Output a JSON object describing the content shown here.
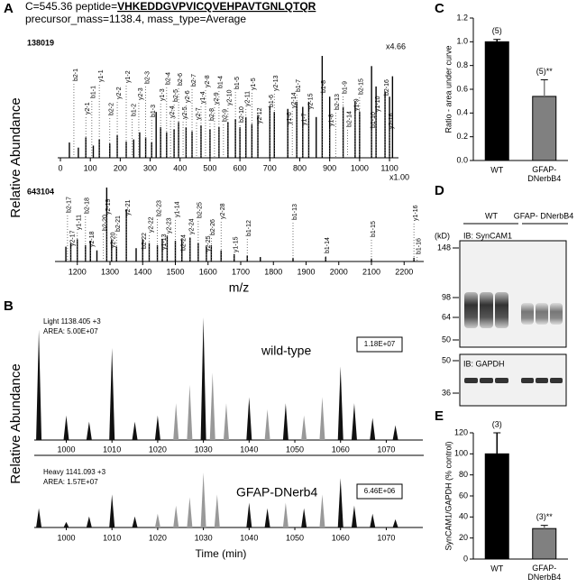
{
  "panel_labels": [
    "A",
    "B",
    "C",
    "D",
    "E"
  ],
  "header": {
    "prefix": "C=545.36 peptide=",
    "peptide": "VHKEDDGVPVICQVEHPAVTGNLQTQR",
    "line2": "precursor_mass=1138.4, mass_type=Average"
  },
  "blot": {
    "unit": "(kD)",
    "groups": [
      "WT",
      "GFAP- DNerbB4"
    ],
    "top_label": "IB: SynCAM1",
    "top_markers": [
      148,
      98,
      64,
      50
    ],
    "bottom_label": "IB: GAPDH",
    "bottom_markers": [
      50,
      36
    ]
  },
  "chart_data": [
    {
      "type": "spectrum",
      "id_label": "138019",
      "zoom_label": "x4.66",
      "zoom_label2": "x1.00",
      "ylabel": "Relative Abundance",
      "xlim": [
        0,
        1130
      ],
      "xticks": [
        0,
        100,
        200,
        300,
        400,
        500,
        600,
        700,
        800,
        900,
        1000,
        1100
      ],
      "ylim": [
        0,
        100
      ],
      "color": "#000000",
      "x": [
        30,
        60,
        85,
        110,
        130,
        165,
        190,
        220,
        245,
        265,
        285,
        305,
        320,
        335,
        355,
        380,
        395,
        420,
        440,
        470,
        500,
        530,
        560,
        585,
        600,
        620,
        640,
        660,
        700,
        715,
        760,
        790,
        810,
        830,
        855,
        875,
        900,
        945,
        985,
        1000,
        1040,
        1055,
        1085,
        1100,
        1110
      ],
      "values": [
        15,
        10,
        20,
        12,
        18,
        14,
        22,
        16,
        18,
        25,
        20,
        15,
        45,
        30,
        25,
        28,
        35,
        30,
        26,
        32,
        28,
        30,
        35,
        38,
        30,
        40,
        33,
        42,
        50,
        45,
        48,
        55,
        50,
        55,
        40,
        100,
        60,
        50,
        55,
        45,
        90,
        70,
        65,
        60,
        80
      ],
      "annotations": [
        {
          "label": "b2-1",
          "x": 45
        },
        {
          "label": "y2-1",
          "x": 85
        },
        {
          "label": "b1-1",
          "x": 105
        },
        {
          "label": "y1-1",
          "x": 130
        },
        {
          "label": "b2-2",
          "x": 165
        },
        {
          "label": "y2-2",
          "x": 190
        },
        {
          "label": "y1-2",
          "x": 220
        },
        {
          "label": "b1-2",
          "x": 240
        },
        {
          "label": "y2-3",
          "x": 262
        },
        {
          "label": "b2-3",
          "x": 285
        },
        {
          "label": "b1-3",
          "x": 305
        },
        {
          "label": "y1-3",
          "x": 335
        },
        {
          "label": "b2-4",
          "x": 355
        },
        {
          "label": "y2-4",
          "x": 368
        },
        {
          "label": "b2-5",
          "x": 380
        },
        {
          "label": "b2-6",
          "x": 395
        },
        {
          "label": "y2-5",
          "x": 410
        },
        {
          "label": "y2-6",
          "x": 420
        },
        {
          "label": "b2-7",
          "x": 440
        },
        {
          "label": "y2-7",
          "x": 455
        },
        {
          "label": "y1-4",
          "x": 470
        },
        {
          "label": "y2-8",
          "x": 485
        },
        {
          "label": "b2-8",
          "x": 500
        },
        {
          "label": "y2-9",
          "x": 515
        },
        {
          "label": "b1-4",
          "x": 530
        },
        {
          "label": "b2-9",
          "x": 545
        },
        {
          "label": "y2-10",
          "x": 560
        },
        {
          "label": "b1-5",
          "x": 585
        },
        {
          "label": "b2-10",
          "x": 600
        },
        {
          "label": "y2-11",
          "x": 620
        },
        {
          "label": "y1-5",
          "x": 640
        },
        {
          "label": "y2-12",
          "x": 660
        },
        {
          "label": "b1-6",
          "x": 700
        },
        {
          "label": "y2-13",
          "x": 715
        },
        {
          "label": "y1-6",
          "x": 760
        },
        {
          "label": "y2-14",
          "x": 775
        },
        {
          "label": "b1-7",
          "x": 790
        },
        {
          "label": "y1-7",
          "x": 810
        },
        {
          "label": "y2-15",
          "x": 830
        },
        {
          "label": "b1-8",
          "x": 875
        },
        {
          "label": "y1-8",
          "x": 900
        },
        {
          "label": "b2-13",
          "x": 920
        },
        {
          "label": "b1-9",
          "x": 945
        },
        {
          "label": "b2-14",
          "x": 960
        },
        {
          "label": "y1-9",
          "x": 985
        },
        {
          "label": "b2-15",
          "x": 1000
        },
        {
          "label": "b1-10",
          "x": 1040
        },
        {
          "label": "y1-10",
          "x": 1055
        },
        {
          "label": "b2-16",
          "x": 1085
        },
        {
          "label": "y2-16",
          "x": 1100
        }
      ]
    },
    {
      "type": "spectrum",
      "id_label": "643104",
      "xlabel": "m/z",
      "xlim": [
        1140,
        2260
      ],
      "xticks": [
        1200,
        1300,
        1400,
        1500,
        1600,
        1700,
        1800,
        1900,
        2000,
        2100,
        2200
      ],
      "ylim": [
        0,
        100
      ],
      "color": "#000000",
      "x": [
        1165,
        1180,
        1200,
        1225,
        1240,
        1260,
        1290,
        1305,
        1320,
        1350,
        1380,
        1400,
        1420,
        1445,
        1460,
        1475,
        1500,
        1520,
        1545,
        1570,
        1595,
        1610,
        1640,
        1680,
        1720,
        1760,
        1860,
        1960,
        2100,
        2230
      ],
      "values": [
        20,
        25,
        30,
        22,
        28,
        15,
        100,
        30,
        20,
        70,
        18,
        30,
        25,
        22,
        30,
        35,
        28,
        30,
        32,
        25,
        20,
        22,
        15,
        10,
        8,
        6,
        5,
        6,
        4,
        5
      ],
      "annotations": [
        {
          "label": "b2-17",
          "x": 1170
        },
        {
          "label": "y2-17",
          "x": 1180
        },
        {
          "label": "y1-11",
          "x": 1200
        },
        {
          "label": "b2-18",
          "x": 1225
        },
        {
          "label": "y2-18",
          "x": 1240
        },
        {
          "label": "b2-20",
          "x": 1280
        },
        {
          "label": "y2-19",
          "x": 1290
        },
        {
          "label": "y2-20",
          "x": 1305
        },
        {
          "label": "b2-21",
          "x": 1320
        },
        {
          "label": "y2-21",
          "x": 1350
        },
        {
          "label": "b2-22",
          "x": 1400
        },
        {
          "label": "y2-22",
          "x": 1420
        },
        {
          "label": "b2-23",
          "x": 1445
        },
        {
          "label": "y1-13",
          "x": 1460
        },
        {
          "label": "y2-23",
          "x": 1475
        },
        {
          "label": "y1-14",
          "x": 1500
        },
        {
          "label": "b2-24",
          "x": 1520
        },
        {
          "label": "y2-24",
          "x": 1545
        },
        {
          "label": "b2-25",
          "x": 1570
        },
        {
          "label": "y2-25",
          "x": 1595
        },
        {
          "label": "b2-26",
          "x": 1610
        },
        {
          "label": "y2-28",
          "x": 1640
        },
        {
          "label": "y1-15",
          "x": 1680
        },
        {
          "label": "b1-12",
          "x": 1720
        },
        {
          "label": "b1-13",
          "x": 1860
        },
        {
          "label": "b1-14",
          "x": 1960
        },
        {
          "label": "b1-15",
          "x": 2100
        },
        {
          "label": "y1-16",
          "x": 2230
        },
        {
          "label": "b1-16",
          "x": 2240
        }
      ]
    },
    {
      "type": "chromatogram",
      "ylabel": "Relative Abundance",
      "precursor": "Light 1138.405 +3",
      "area": "AREA: 5.00E+07",
      "trace_name": "wild-type",
      "boxed_value": "1.18E+07",
      "xlim": [
        993,
        1078
      ],
      "xticks": [
        1000,
        1010,
        1020,
        1030,
        1040,
        1050,
        1060,
        1070
      ],
      "ylim": [
        0,
        100
      ],
      "series": [
        {
          "color": "#111111",
          "x": [
            994,
            1000,
            1005,
            1010,
            1015,
            1020,
            1030,
            1040,
            1048,
            1060,
            1063,
            1067,
            1072
          ],
          "values": [
            90,
            20,
            15,
            75,
            15,
            20,
            100,
            35,
            30,
            60,
            30,
            18,
            12
          ]
        },
        {
          "color": "#999999",
          "x": [
            1024,
            1027,
            1032,
            1035,
            1044,
            1052,
            1056
          ],
          "values": [
            30,
            45,
            55,
            30,
            25,
            20,
            35
          ]
        }
      ]
    },
    {
      "type": "chromatogram",
      "xlabel": "Time (min)",
      "precursor": "Heavy 1141.093 +3",
      "area": "AREA: 1.57E+07",
      "trace_name": "GFAP-DNerb4",
      "boxed_value": "6.46E+06",
      "xlim": [
        993,
        1078
      ],
      "xticks": [
        1000,
        1010,
        1020,
        1030,
        1040,
        1050,
        1060,
        1070
      ],
      "ylim": [
        0,
        100
      ],
      "series": [
        {
          "color": "#111111",
          "x": [
            994,
            1000,
            1005,
            1010,
            1015,
            1040,
            1044,
            1052,
            1060,
            1063,
            1067,
            1072
          ],
          "values": [
            35,
            10,
            20,
            60,
            20,
            45,
            35,
            35,
            90,
            40,
            25,
            15
          ]
        },
        {
          "color": "#999999",
          "x": [
            1020,
            1024,
            1027,
            1030,
            1033,
            1048,
            1056
          ],
          "values": [
            25,
            40,
            55,
            100,
            60,
            45,
            60
          ]
        }
      ]
    },
    {
      "type": "bar",
      "ylabel": "Ratio - area under curve",
      "categories": [
        "WT",
        "GFAP-\nDNerbB4"
      ],
      "values": [
        1.0,
        0.54
      ],
      "errors": [
        0.02,
        0.14
      ],
      "n_labels": [
        "(5)",
        "(5)**"
      ],
      "colors": [
        "#000000",
        "#808080"
      ],
      "ylim": [
        0,
        1.2
      ],
      "yticks": [
        {
          "value": 0,
          "label": "0.0"
        },
        0.2,
        0.4,
        0.6,
        0.8,
        {
          "value": 1,
          "label": "1.0"
        },
        1.2
      ]
    },
    {
      "type": "bar",
      "ylabel": "SynCAM1/GAPDH (% control)",
      "categories": [
        "WT",
        "GFAP-\nDNerbB4"
      ],
      "values": [
        100,
        29
      ],
      "errors": [
        20,
        3
      ],
      "n_labels": [
        "(3)",
        "(3)**"
      ],
      "colors": [
        "#000000",
        "#808080"
      ],
      "ylim": [
        0,
        120
      ],
      "yticks": [
        0,
        20,
        40,
        60,
        80,
        100,
        120
      ]
    }
  ]
}
